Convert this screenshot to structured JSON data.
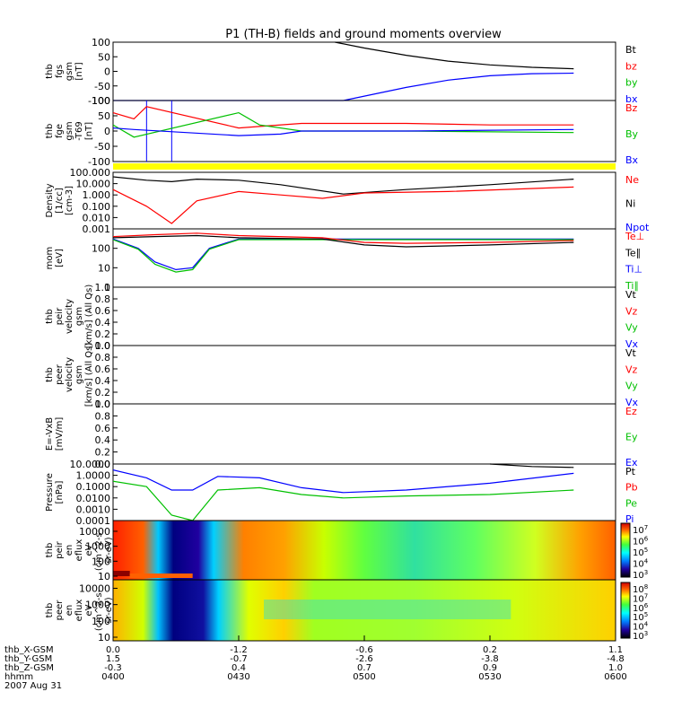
{
  "title": "P1 (TH-B) fields and ground moments overview",
  "chart_data": [
    {
      "type": "line",
      "panel": "fgs",
      "ylabel": [
        "thb",
        "fgs",
        "gsm",
        "[nT]"
      ],
      "yticks": [
        100,
        50,
        0,
        -50,
        -100
      ],
      "ylim": [
        -100,
        100
      ],
      "legend": [
        {
          "label": "Bt",
          "color": "#000000"
        },
        {
          "label": "bz",
          "color": "#ff0000"
        },
        {
          "label": "by",
          "color": "#00c000"
        },
        {
          "label": "bx",
          "color": "#0000ff"
        }
      ],
      "series": [
        {
          "name": "Bt",
          "color": "#000000",
          "points": [
            [
              0.53,
              100
            ],
            [
              0.6,
              80
            ],
            [
              0.7,
              55
            ],
            [
              0.8,
              35
            ],
            [
              0.9,
              22
            ],
            [
              1.0,
              14
            ],
            [
              1.1,
              9
            ]
          ]
        },
        {
          "name": "bx",
          "color": "#0000ff",
          "points": [
            [
              0.0,
              -100
            ],
            [
              0.55,
              -100
            ],
            [
              0.7,
              -55
            ],
            [
              0.8,
              -30
            ],
            [
              0.9,
              -15
            ],
            [
              1.0,
              -8
            ],
            [
              1.1,
              -6
            ]
          ]
        }
      ]
    },
    {
      "type": "line",
      "panel": "fge",
      "ylabel": [
        "thb",
        "fge",
        "gsm",
        "-T69",
        "[nT]"
      ],
      "yticks": [
        100,
        50,
        0,
        -50,
        -100
      ],
      "ylim": [
        -100,
        100
      ],
      "legend": [
        {
          "label": "Bz",
          "color": "#ff0000"
        },
        {
          "label": "By",
          "color": "#00c000"
        },
        {
          "label": "Bx",
          "color": "#0000ff"
        }
      ],
      "series": [
        {
          "name": "Bz",
          "color": "#ff0000",
          "points": [
            [
              0.0,
              60
            ],
            [
              0.05,
              40
            ],
            [
              0.08,
              80
            ],
            [
              0.3,
              10
            ],
            [
              0.35,
              15
            ],
            [
              0.45,
              25
            ],
            [
              0.7,
              25
            ],
            [
              0.9,
              20
            ],
            [
              1.1,
              20
            ]
          ]
        },
        {
          "name": "By",
          "color": "#00c000",
          "points": [
            [
              0.0,
              20
            ],
            [
              0.05,
              -20
            ],
            [
              0.3,
              60
            ],
            [
              0.35,
              20
            ],
            [
              0.45,
              0
            ],
            [
              0.7,
              0
            ],
            [
              1.1,
              -5
            ]
          ]
        },
        {
          "name": "Bx",
          "color": "#0000ff",
          "points": [
            [
              0.0,
              10
            ],
            [
              0.05,
              5
            ],
            [
              0.3,
              -15
            ],
            [
              0.4,
              -10
            ],
            [
              0.45,
              0
            ],
            [
              0.7,
              0
            ],
            [
              1.1,
              5
            ]
          ]
        }
      ]
    },
    {
      "type": "line",
      "panel": "density",
      "ylabel": [
        "Density",
        "[1/cc]",
        "[cm-3]"
      ],
      "yticks": [
        "100.000",
        "10.000",
        "1.000",
        "0.100",
        "0.010",
        "0.001"
      ],
      "ylim": [
        0.001,
        100
      ],
      "log": true,
      "legend": [
        {
          "label": "Ne",
          "color": "#ff0000"
        },
        {
          "label": "Ni",
          "color": "#000000"
        },
        {
          "label": "Npot",
          "color": "#0000ff"
        }
      ],
      "series": [
        {
          "name": "Ni",
          "color": "#000000",
          "points": [
            [
              0.0,
              40
            ],
            [
              0.08,
              20
            ],
            [
              0.14,
              15
            ],
            [
              0.2,
              25
            ],
            [
              0.3,
              20
            ],
            [
              0.4,
              8
            ],
            [
              0.55,
              1.2
            ],
            [
              0.7,
              3
            ],
            [
              0.9,
              8
            ],
            [
              1.1,
              25
            ]
          ]
        },
        {
          "name": "Ne",
          "color": "#ff0000",
          "points": [
            [
              0.0,
              3
            ],
            [
              0.08,
              0.1
            ],
            [
              0.14,
              0.003
            ],
            [
              0.2,
              0.3
            ],
            [
              0.3,
              2
            ],
            [
              0.4,
              1
            ],
            [
              0.5,
              0.5
            ],
            [
              0.6,
              1.5
            ],
            [
              0.8,
              2
            ],
            [
              1.1,
              5
            ]
          ]
        }
      ]
    },
    {
      "type": "line",
      "panel": "mom",
      "ylabel": [
        "mom",
        "[eV]"
      ],
      "yticks": [
        100,
        10,
        1
      ],
      "ylim": [
        1,
        1000
      ],
      "log": true,
      "legend": [
        {
          "label": "Te⊥",
          "color": "#ff0000"
        },
        {
          "label": "Te∥",
          "color": "#000000"
        },
        {
          "label": "Ti⊥",
          "color": "#0000ff"
        },
        {
          "label": "Ti∥",
          "color": "#00c000"
        }
      ],
      "series": [
        {
          "name": "Ti⊥",
          "color": "#0000ff",
          "points": [
            [
              0.0,
              300
            ],
            [
              0.06,
              100
            ],
            [
              0.1,
              20
            ],
            [
              0.15,
              8
            ],
            [
              0.19,
              10
            ],
            [
              0.23,
              100
            ],
            [
              0.3,
              300
            ],
            [
              0.5,
              300
            ],
            [
              0.7,
              300
            ],
            [
              1.1,
              300
            ]
          ]
        },
        {
          "name": "Ti∥",
          "color": "#00c000",
          "points": [
            [
              0.0,
              280
            ],
            [
              0.06,
              90
            ],
            [
              0.1,
              15
            ],
            [
              0.15,
              6
            ],
            [
              0.19,
              8
            ],
            [
              0.23,
              90
            ],
            [
              0.3,
              280
            ],
            [
              0.5,
              280
            ],
            [
              0.7,
              280
            ],
            [
              1.1,
              280
            ]
          ]
        },
        {
          "name": "Te⊥",
          "color": "#ff0000",
          "points": [
            [
              0.0,
              400
            ],
            [
              0.1,
              500
            ],
            [
              0.2,
              600
            ],
            [
              0.3,
              450
            ],
            [
              0.5,
              350
            ],
            [
              0.6,
              200
            ],
            [
              0.7,
              180
            ],
            [
              0.9,
              200
            ],
            [
              1.1,
              250
            ]
          ]
        },
        {
          "name": "Te∥",
          "color": "#000000",
          "points": [
            [
              0.0,
              350
            ],
            [
              0.1,
              400
            ],
            [
              0.2,
              450
            ],
            [
              0.3,
              350
            ],
            [
              0.5,
              300
            ],
            [
              0.6,
              150
            ],
            [
              0.7,
              120
            ],
            [
              0.9,
              150
            ],
            [
              1.1,
              200
            ]
          ]
        }
      ]
    },
    {
      "type": "line",
      "panel": "peir_velocity",
      "ylabel": [
        "thb",
        "peir",
        "velocity",
        "gsm",
        "[km/s] (All Qs)"
      ],
      "yticks": [
        "1.0",
        "0.8",
        "0.6",
        "0.4",
        "0.2",
        "0.0"
      ],
      "ylim": [
        0,
        1
      ],
      "legend": [
        {
          "label": "Vt",
          "color": "#000000"
        },
        {
          "label": "Vz",
          "color": "#ff0000"
        },
        {
          "label": "Vy",
          "color": "#00c000"
        },
        {
          "label": "Vx",
          "color": "#0000ff"
        }
      ],
      "series": []
    },
    {
      "type": "line",
      "panel": "peer_velocity",
      "ylabel": [
        "thb",
        "peer",
        "velocity",
        "gsm",
        "[km/s] (All Qs)"
      ],
      "yticks": [
        "1.0",
        "0.8",
        "0.6",
        "0.4",
        "0.2",
        "0.0"
      ],
      "ylim": [
        0,
        1
      ],
      "legend": [
        {
          "label": "Vt",
          "color": "#000000"
        },
        {
          "label": "Vz",
          "color": "#ff0000"
        },
        {
          "label": "Vy",
          "color": "#00c000"
        },
        {
          "label": "Vx",
          "color": "#0000ff"
        }
      ],
      "series": []
    },
    {
      "type": "line",
      "panel": "efield",
      "ylabel": [
        "E=-VxB",
        "[mV/m]"
      ],
      "yticks": [
        "1.0",
        "0.8",
        "0.6",
        "0.4",
        "0.2",
        "0.0"
      ],
      "ylim": [
        0,
        1
      ],
      "legend": [
        {
          "label": "Ez",
          "color": "#ff0000"
        },
        {
          "label": "Ey",
          "color": "#00c000"
        },
        {
          "label": "Ex",
          "color": "#0000ff"
        }
      ],
      "series": []
    },
    {
      "type": "line",
      "panel": "pressure",
      "ylabel": [
        "Pressure",
        "[nPa]"
      ],
      "yticks": [
        "10.0000",
        "1.0000",
        "0.1000",
        "0.0100",
        "0.0010",
        "0.0001"
      ],
      "ylim": [
        0.0001,
        10
      ],
      "log": true,
      "legend": [
        {
          "label": "Pt",
          "color": "#000000"
        },
        {
          "label": "Pb",
          "color": "#ff0000"
        },
        {
          "label": "Pe",
          "color": "#00c000"
        },
        {
          "label": "Pi",
          "color": "#0000ff"
        }
      ],
      "series": [
        {
          "name": "Pi",
          "color": "#0000ff",
          "points": [
            [
              0.0,
              3
            ],
            [
              0.08,
              0.6
            ],
            [
              0.14,
              0.05
            ],
            [
              0.19,
              0.05
            ],
            [
              0.25,
              0.8
            ],
            [
              0.35,
              0.6
            ],
            [
              0.45,
              0.08
            ],
            [
              0.55,
              0.03
            ],
            [
              0.7,
              0.05
            ],
            [
              0.9,
              0.2
            ],
            [
              1.1,
              1.5
            ]
          ]
        },
        {
          "name": "Pe",
          "color": "#00c000",
          "points": [
            [
              0.0,
              0.3
            ],
            [
              0.08,
              0.1
            ],
            [
              0.14,
              0.0003
            ],
            [
              0.19,
              0.0001
            ],
            [
              0.25,
              0.05
            ],
            [
              0.35,
              0.08
            ],
            [
              0.45,
              0.02
            ],
            [
              0.55,
              0.01
            ],
            [
              0.7,
              0.015
            ],
            [
              0.9,
              0.02
            ],
            [
              1.1,
              0.05
            ]
          ]
        },
        {
          "name": "Pt",
          "color": "#000000",
          "points": [
            [
              0.9,
              10
            ],
            [
              1.0,
              6
            ],
            [
              1.1,
              5
            ]
          ]
        }
      ]
    },
    {
      "type": "heatmap",
      "panel": "peir_spectrogram",
      "ylabel": [
        "thb",
        "peir",
        "en",
        "eflux",
        "eV",
        "(cm^2-s-",
        "sr-eV)"
      ],
      "yticks": [
        10000,
        1000,
        100,
        10
      ],
      "colorbar_ticks": [
        "10^7",
        "10^6",
        "10^5",
        "10^4",
        "10^3"
      ]
    },
    {
      "type": "heatmap",
      "panel": "peer_spectrogram",
      "ylabel": [
        "thb",
        "peer",
        "en",
        "eflux",
        "eV",
        "(cm^2-s-",
        "sr-eV)"
      ],
      "yticks": [
        10000,
        1000,
        100,
        10
      ],
      "colorbar_ticks": [
        "10^8",
        "10^7",
        "10^6",
        "10^5",
        "10^4",
        "10^3"
      ]
    }
  ],
  "xaxis": {
    "positions": [
      0.0,
      0.3,
      0.6,
      0.9,
      1.2
    ],
    "rows": [
      {
        "label": "thb_X-GSM",
        "values": [
          "0.0",
          "-1.2",
          "-0.6",
          "0.2",
          "1.1"
        ]
      },
      {
        "label": "thb_Y-GSM",
        "values": [
          "1.5",
          "-0.7",
          "-2.6",
          "-3.8",
          "-4.8"
        ]
      },
      {
        "label": "thb_Z-GSM",
        "values": [
          "-0.3",
          "0.4",
          "0.7",
          "0.9",
          "1.0"
        ]
      },
      {
        "label": "hhmm",
        "values": [
          "0400",
          "0430",
          "0500",
          "0530",
          "0600"
        ]
      }
    ],
    "date": "2007 Aug 31"
  }
}
